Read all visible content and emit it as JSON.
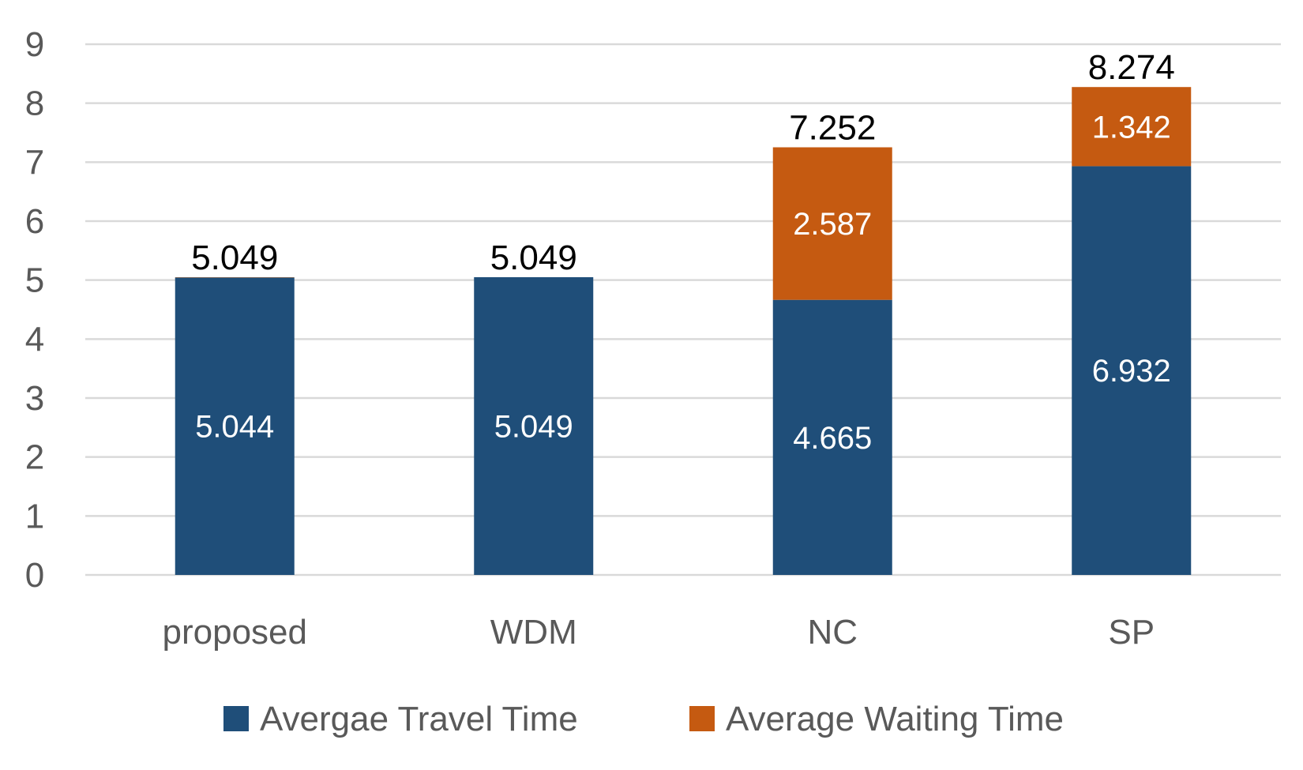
{
  "chart_data": {
    "type": "bar",
    "stacked": true,
    "title": "",
    "xlabel": "",
    "ylabel": "",
    "categories": [
      "proposed",
      "WDM",
      "NC",
      "SP"
    ],
    "series": [
      {
        "name": "Avergae Travel Time",
        "color": "#1F4E79",
        "values": [
          5.044,
          5.049,
          4.665,
          6.932
        ]
      },
      {
        "name": "Average Waiting Time",
        "color": "#C55A11",
        "values": [
          0.005,
          0,
          2.587,
          1.342
        ],
        "labels": [
          "",
          "",
          "2.587",
          "1.342"
        ]
      }
    ],
    "segment_labels": [
      [
        "5.044",
        "5.049",
        "4.665",
        "6.932"
      ],
      [
        "",
        "",
        "2.587",
        "1.342"
      ]
    ],
    "totals": [
      5.049,
      5.049,
      7.252,
      8.274
    ],
    "total_labels": [
      "5.049",
      "5.049",
      "7.252",
      "8.274"
    ],
    "ylim": [
      0,
      9
    ],
    "yticks": [
      0,
      1,
      2,
      3,
      4,
      5,
      6,
      7,
      8,
      9
    ],
    "grid": true,
    "legend_position": "bottom"
  }
}
